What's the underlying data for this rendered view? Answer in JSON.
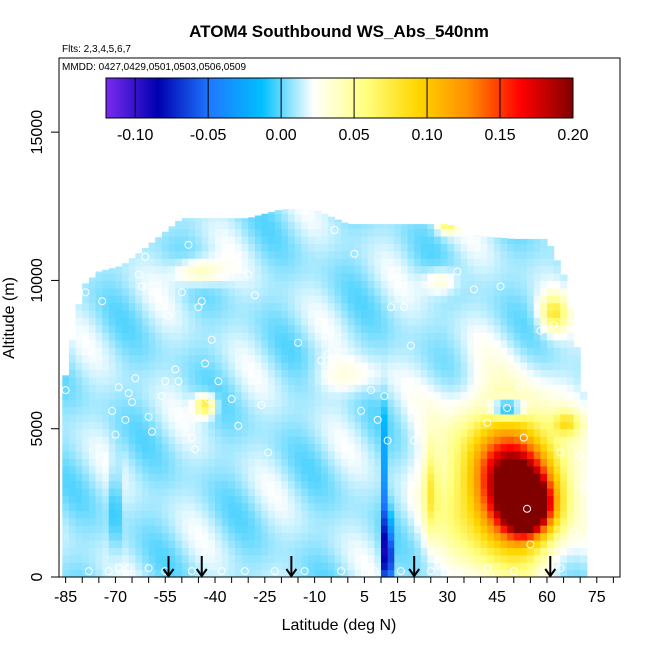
{
  "chart_data": {
    "type": "heatmap",
    "title": "ATOM4 Southbound WS_Abs_540nm",
    "subtitle_flights": "Flts: 2,3,4,5,6,7",
    "subtitle_dates": "MMDD: 0427,0429,0501,0503,0506,0509",
    "xlabel": "Latitude (deg N)",
    "ylabel": "Altitude (m)",
    "xlim": [
      -87,
      82
    ],
    "ylim": [
      0,
      17500
    ],
    "x_ticks": [
      -85,
      -70,
      -55,
      -40,
      -25,
      -10,
      5,
      15,
      30,
      45,
      60,
      75
    ],
    "x_tick_labels": [
      "-85",
      "-70",
      "-55",
      "-40",
      "-25",
      "-10",
      "5",
      "15",
      "30",
      "45",
      "60",
      "75"
    ],
    "y_ticks": [
      0,
      5000,
      10000,
      15000
    ],
    "y_tick_labels": [
      "0",
      "5000",
      "10000",
      "15000"
    ],
    "colorbar": {
      "range": [
        -0.12,
        0.2
      ],
      "ticks": [
        -0.1,
        -0.05,
        0.0,
        0.05,
        0.1,
        0.15,
        0.2
      ],
      "tick_labels": [
        "-0.10",
        "-0.05",
        "0.00",
        "0.05",
        "0.10",
        "0.15",
        "0.20"
      ],
      "colors": [
        "#7a2bf0",
        "#0000b0",
        "#1e78ff",
        "#00bfff",
        "#ffffff",
        "#ffff80",
        "#ffd700",
        "#ff8c00",
        "#ff0000",
        "#800000"
      ]
    },
    "background_value": 0.01,
    "curtain_extent": {
      "x": [
        -86,
        -80,
        -75,
        -68,
        -62,
        -50,
        -40,
        -30,
        -20,
        -10,
        0,
        10,
        20,
        30,
        40,
        50,
        60,
        65,
        68,
        70,
        72
      ],
      "top": [
        6200,
        9800,
        10300,
        10500,
        11000,
        12100,
        12100,
        12100,
        12400,
        12400,
        11900,
        11900,
        11900,
        11900,
        11500,
        11400,
        11400,
        10200,
        8500,
        7000,
        5500
      ]
    },
    "anomalies": [
      {
        "lat": 54,
        "alt": 2400,
        "value": 0.2,
        "lat_width": 12,
        "alt_width": 1600
      },
      {
        "lat": 52,
        "alt": 3000,
        "value": 0.15,
        "lat_width": 24,
        "alt_width": 3800
      },
      {
        "lat": 45,
        "alt": 3200,
        "value": 0.1,
        "lat_width": 34,
        "alt_width": 5400
      },
      {
        "lat": 12,
        "alt": 600,
        "value": -0.1,
        "lat_width": 3,
        "alt_width": 2400
      },
      {
        "lat": 11,
        "alt": 2500,
        "value": -0.04,
        "lat_width": 2,
        "alt_width": 5000
      },
      {
        "lat": 48,
        "alt": 5700,
        "value": -0.07,
        "lat_width": 10,
        "alt_width": 600
      },
      {
        "lat": 62,
        "alt": 8900,
        "value": 0.07,
        "lat_width": 8,
        "alt_width": 1200
      },
      {
        "lat": 66,
        "alt": 5200,
        "value": 0.06,
        "lat_width": 8,
        "alt_width": 800
      },
      {
        "lat": -43,
        "alt": 5800,
        "value": 0.08,
        "lat_width": 6,
        "alt_width": 700
      },
      {
        "lat": -45,
        "alt": 10300,
        "value": 0.05,
        "lat_width": 14,
        "alt_width": 900
      },
      {
        "lat": 28,
        "alt": 10000,
        "value": 0.04,
        "lat_width": 10,
        "alt_width": 900
      },
      {
        "lat": 30,
        "alt": 11900,
        "value": 0.06,
        "lat_width": 6,
        "alt_width": 600
      },
      {
        "lat": -70,
        "alt": 2500,
        "value": -0.015,
        "lat_width": 3,
        "alt_width": 3000
      },
      {
        "lat": 25,
        "alt": 3000,
        "value": 0.05,
        "lat_width": 4,
        "alt_width": 3000
      },
      {
        "lat": 0,
        "alt": 6800,
        "value": 0.03,
        "lat_width": 20,
        "alt_width": 1200
      }
    ],
    "sample_points": [
      {
        "x": -85,
        "y": 6300
      },
      {
        "x": -82,
        "y": 9600
      },
      {
        "x": -79,
        "y": 9600
      },
      {
        "x": -74,
        "y": 9300
      },
      {
        "x": -71,
        "y": 5600
      },
      {
        "x": -70,
        "y": 4800
      },
      {
        "x": -69,
        "y": 6400
      },
      {
        "x": -67,
        "y": 5300
      },
      {
        "x": -66,
        "y": 6200
      },
      {
        "x": -65,
        "y": 5900
      },
      {
        "x": -64,
        "y": 6700
      },
      {
        "x": -63,
        "y": 10200
      },
      {
        "x": -62,
        "y": 9800
      },
      {
        "x": -61,
        "y": 10800
      },
      {
        "x": -60,
        "y": 5400
      },
      {
        "x": -59,
        "y": 4900
      },
      {
        "x": -58,
        "y": 9600
      },
      {
        "x": -56,
        "y": 6100
      },
      {
        "x": -55,
        "y": 6600
      },
      {
        "x": -54,
        "y": 8800
      },
      {
        "x": -52,
        "y": 7000
      },
      {
        "x": -51,
        "y": 6600
      },
      {
        "x": -50,
        "y": 9600
      },
      {
        "x": -49,
        "y": 5100
      },
      {
        "x": -48,
        "y": 11200
      },
      {
        "x": -47,
        "y": 4700
      },
      {
        "x": -46,
        "y": 4300
      },
      {
        "x": -45,
        "y": 9100
      },
      {
        "x": -44,
        "y": 9300
      },
      {
        "x": -43,
        "y": 7200
      },
      {
        "x": -42,
        "y": 6000
      },
      {
        "x": -41,
        "y": 8000
      },
      {
        "x": -39,
        "y": 6600
      },
      {
        "x": -37,
        "y": 10200
      },
      {
        "x": -35,
        "y": 6000
      },
      {
        "x": -33,
        "y": 5100
      },
      {
        "x": -30,
        "y": 10200
      },
      {
        "x": -28,
        "y": 9500
      },
      {
        "x": -26,
        "y": 5800
      },
      {
        "x": -24,
        "y": 4200
      },
      {
        "x": -15,
        "y": 7900
      },
      {
        "x": -8,
        "y": 7300
      },
      {
        "x": -6,
        "y": 7500
      },
      {
        "x": -4,
        "y": 11700
      },
      {
        "x": 2,
        "y": 10900
      },
      {
        "x": 4,
        "y": 5600
      },
      {
        "x": 7,
        "y": 6300
      },
      {
        "x": 9,
        "y": 5300
      },
      {
        "x": 11,
        "y": 6100
      },
      {
        "x": 12,
        "y": 4600
      },
      {
        "x": 13,
        "y": 9100
      },
      {
        "x": 17,
        "y": 9100
      },
      {
        "x": 19,
        "y": 7800
      },
      {
        "x": 20,
        "y": 4600
      },
      {
        "x": 22,
        "y": 5600
      },
      {
        "x": 30,
        "y": 5500
      },
      {
        "x": 33,
        "y": 10300
      },
      {
        "x": 38,
        "y": 9700
      },
      {
        "x": 42,
        "y": 5200
      },
      {
        "x": 46,
        "y": 9800
      },
      {
        "x": 48,
        "y": 5700
      },
      {
        "x": 52,
        "y": 6400
      },
      {
        "x": 53,
        "y": 4700
      },
      {
        "x": 54,
        "y": 2300
      },
      {
        "x": 55,
        "y": 1100
      },
      {
        "x": 58,
        "y": 8300
      },
      {
        "x": 62,
        "y": 8500
      },
      {
        "x": 64,
        "y": 4200
      },
      {
        "x": 68,
        "y": 1500
      },
      {
        "x": 70,
        "y": 4100
      },
      {
        "x": 71,
        "y": 3000
      },
      {
        "x": -78,
        "y": 200
      },
      {
        "x": -72,
        "y": 200
      },
      {
        "x": -69,
        "y": 300
      },
      {
        "x": -66,
        "y": 300
      },
      {
        "x": -60,
        "y": 300
      },
      {
        "x": -55,
        "y": 200
      },
      {
        "x": -47,
        "y": 200
      },
      {
        "x": -38,
        "y": 200
      },
      {
        "x": -31,
        "y": 200
      },
      {
        "x": -22,
        "y": 200
      },
      {
        "x": -13,
        "y": 200
      },
      {
        "x": -2,
        "y": 200
      },
      {
        "x": 8,
        "y": 200
      },
      {
        "x": 16,
        "y": 200
      },
      {
        "x": 25,
        "y": 200
      },
      {
        "x": 34,
        "y": 200
      },
      {
        "x": 42,
        "y": 300
      },
      {
        "x": 50,
        "y": 200
      },
      {
        "x": 58,
        "y": 200
      },
      {
        "x": 64,
        "y": 300
      }
    ],
    "arrows_lat": [
      -54,
      -44,
      -17,
      20,
      61
    ]
  }
}
